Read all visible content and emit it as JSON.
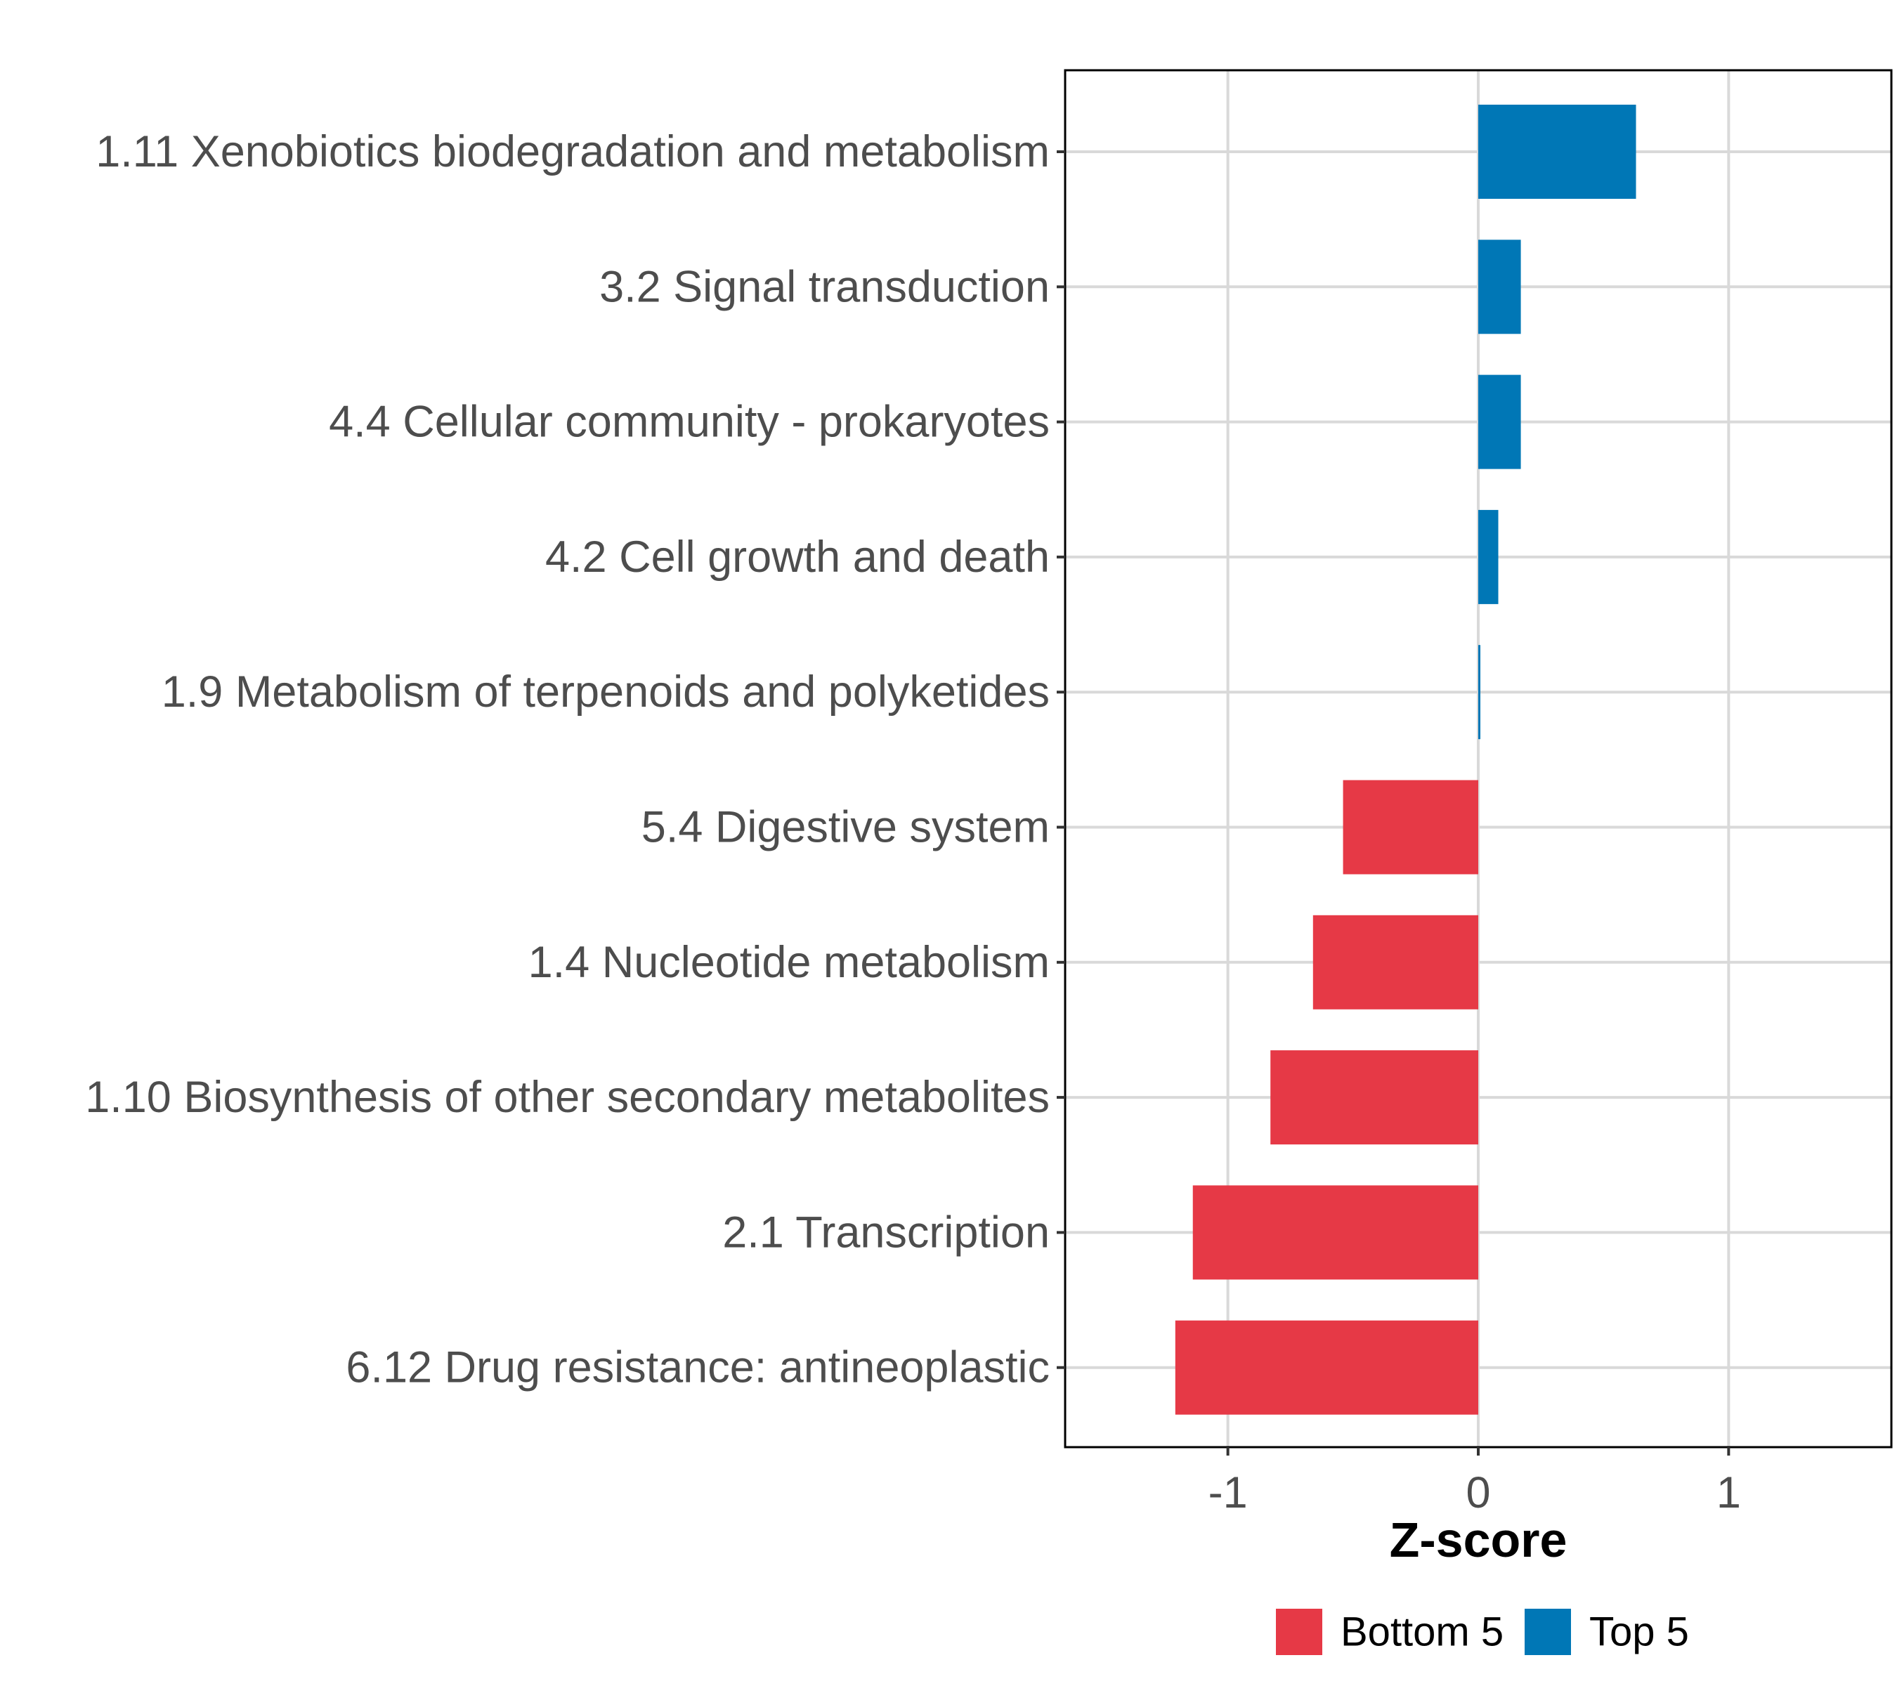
{
  "chart_data": {
    "type": "bar",
    "orientation": "horizontal",
    "title": "",
    "xlabel": "Z-score",
    "ylabel": "",
    "xlim": [
      -1.65,
      1.65
    ],
    "xticks": [
      -1,
      0,
      1
    ],
    "xtick_labels": [
      "-1",
      "0",
      "1"
    ],
    "grid": true,
    "legend_position": "bottom",
    "categories": [
      "1.11 Xenobiotics biodegradation and metabolism",
      "3.2 Signal transduction",
      "4.4 Cellular community - prokaryotes",
      "4.2 Cell growth and death",
      "1.9 Metabolism of terpenoids and polyketides",
      "5.4 Digestive system",
      "1.4 Nucleotide metabolism",
      "1.10 Biosynthesis of other secondary metabolites",
      "2.1 Transcription",
      "6.12 Drug resistance: antineoplastic"
    ],
    "values": [
      0.63,
      0.17,
      0.17,
      0.08,
      0.005,
      -0.54,
      -0.66,
      -0.83,
      -1.14,
      -1.21
    ],
    "groups": [
      "Top 5",
      "Top 5",
      "Top 5",
      "Top 5",
      "Top 5",
      "Bottom 5",
      "Bottom 5",
      "Bottom 5",
      "Bottom 5",
      "Bottom 5"
    ],
    "legend": [
      {
        "name": "Bottom 5",
        "color": "#e63946"
      },
      {
        "name": "Top 5",
        "color": "#0077b6"
      }
    ]
  }
}
